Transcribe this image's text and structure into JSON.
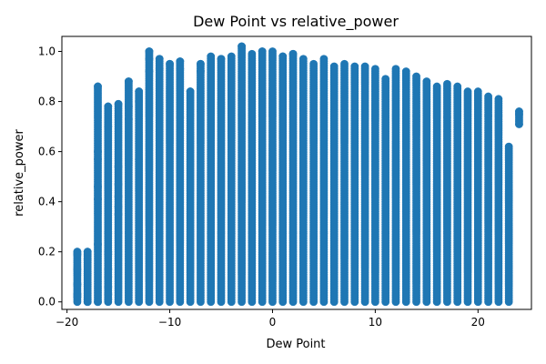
{
  "chart_data": {
    "type": "scatter",
    "title": "Dew Point vs relative_power",
    "xlabel": "Dew Point",
    "ylabel": "relative_power",
    "xlim": [
      -20.5,
      25.2
    ],
    "ylim": [
      -0.03,
      1.06
    ],
    "x_ticks": [
      -20,
      -10,
      0,
      10,
      20
    ],
    "y_ticks": [
      0.0,
      0.2,
      0.4,
      0.6,
      0.8,
      1.0
    ],
    "x_tick_labels": [
      "−20",
      "−10",
      "0",
      "10",
      "20"
    ],
    "y_tick_labels": [
      "0.0",
      "0.2",
      "0.4",
      "0.6",
      "0.8",
      "1.0"
    ],
    "grid": false,
    "legend": "none",
    "marker_color": "#1f77b4",
    "columns": [
      {
        "x": -19,
        "ymin": 0.0,
        "ymax": 0.2
      },
      {
        "x": -18,
        "ymin": 0.0,
        "ymax": 0.2
      },
      {
        "x": -17,
        "ymin": 0.0,
        "ymax": 0.86
      },
      {
        "x": -16,
        "ymin": 0.0,
        "ymax": 0.78
      },
      {
        "x": -15,
        "ymin": 0.0,
        "ymax": 0.79
      },
      {
        "x": -14,
        "ymin": 0.0,
        "ymax": 0.88
      },
      {
        "x": -13,
        "ymin": 0.0,
        "ymax": 0.84
      },
      {
        "x": -12,
        "ymin": 0.0,
        "ymax": 1.0
      },
      {
        "x": -11,
        "ymin": 0.0,
        "ymax": 0.97
      },
      {
        "x": -10,
        "ymin": 0.0,
        "ymax": 0.95
      },
      {
        "x": -9,
        "ymin": 0.0,
        "ymax": 0.96
      },
      {
        "x": -8,
        "ymin": 0.0,
        "ymax": 0.84
      },
      {
        "x": -7,
        "ymin": 0.0,
        "ymax": 0.95
      },
      {
        "x": -6,
        "ymin": 0.0,
        "ymax": 0.98
      },
      {
        "x": -5,
        "ymin": 0.0,
        "ymax": 0.97
      },
      {
        "x": -4,
        "ymin": 0.0,
        "ymax": 0.98
      },
      {
        "x": -3,
        "ymin": 0.0,
        "ymax": 1.02
      },
      {
        "x": -2,
        "ymin": 0.0,
        "ymax": 0.99
      },
      {
        "x": -1,
        "ymin": 0.0,
        "ymax": 1.0
      },
      {
        "x": 0,
        "ymin": 0.0,
        "ymax": 1.0
      },
      {
        "x": 1,
        "ymin": 0.0,
        "ymax": 0.98
      },
      {
        "x": 2,
        "ymin": 0.0,
        "ymax": 0.99
      },
      {
        "x": 3,
        "ymin": 0.0,
        "ymax": 0.97
      },
      {
        "x": 4,
        "ymin": 0.0,
        "ymax": 0.95
      },
      {
        "x": 5,
        "ymin": 0.0,
        "ymax": 0.97
      },
      {
        "x": 6,
        "ymin": 0.0,
        "ymax": 0.94
      },
      {
        "x": 7,
        "ymin": 0.0,
        "ymax": 0.95
      },
      {
        "x": 8,
        "ymin": 0.0,
        "ymax": 0.94
      },
      {
        "x": 9,
        "ymin": 0.0,
        "ymax": 0.94
      },
      {
        "x": 10,
        "ymin": 0.0,
        "ymax": 0.93
      },
      {
        "x": 11,
        "ymin": 0.0,
        "ymax": 0.89
      },
      {
        "x": 12,
        "ymin": 0.0,
        "ymax": 0.93
      },
      {
        "x": 13,
        "ymin": 0.0,
        "ymax": 0.92
      },
      {
        "x": 14,
        "ymin": 0.0,
        "ymax": 0.9
      },
      {
        "x": 15,
        "ymin": 0.0,
        "ymax": 0.88
      },
      {
        "x": 16,
        "ymin": 0.0,
        "ymax": 0.86
      },
      {
        "x": 17,
        "ymin": 0.0,
        "ymax": 0.87
      },
      {
        "x": 18,
        "ymin": 0.0,
        "ymax": 0.86
      },
      {
        "x": 19,
        "ymin": 0.0,
        "ymax": 0.84
      },
      {
        "x": 20,
        "ymin": 0.0,
        "ymax": 0.84
      },
      {
        "x": 21,
        "ymin": 0.0,
        "ymax": 0.82
      },
      {
        "x": 22,
        "ymin": 0.0,
        "ymax": 0.81
      },
      {
        "x": 23,
        "ymin": 0.0,
        "ymax": 0.62
      },
      {
        "x": 24,
        "ymin": 0.71,
        "ymax": 0.76
      }
    ],
    "sparse_points": [
      {
        "x": -19,
        "y": 0.2
      },
      {
        "x": -19,
        "y": 0.19
      },
      {
        "x": -19,
        "y": 0.13
      },
      {
        "x": -19,
        "y": 0.07
      },
      {
        "x": -19,
        "y": 0.03
      },
      {
        "x": -19,
        "y": 0.02
      },
      {
        "x": -18,
        "y": 0.2
      },
      {
        "x": -18,
        "y": 0.17
      },
      {
        "x": -18,
        "y": 0.01
      },
      {
        "x": -18,
        "y": 0.0
      },
      {
        "x": -17,
        "y": 0.86
      },
      {
        "x": -17,
        "y": 0.6
      },
      {
        "x": -17,
        "y": 0.57
      },
      {
        "x": -17,
        "y": 0.46
      },
      {
        "x": -17,
        "y": 0.41
      },
      {
        "x": -17,
        "y": 0.23
      },
      {
        "x": -17,
        "y": 0.0
      },
      {
        "x": -16,
        "y": 0.78
      },
      {
        "x": -16,
        "y": 0.7
      },
      {
        "x": -16,
        "y": 0.2
      },
      {
        "x": -16,
        "y": 0.19
      },
      {
        "x": -16,
        "y": 0.13
      },
      {
        "x": -16,
        "y": 0.1
      },
      {
        "x": -16,
        "y": 0.06
      },
      {
        "x": -16,
        "y": 0.03
      },
      {
        "x": -16,
        "y": 0.01
      },
      {
        "x": -15,
        "y": 0.79
      },
      {
        "x": -15,
        "y": 0.54
      },
      {
        "x": -15,
        "y": 0.47
      },
      {
        "x": -15,
        "y": 0.42
      },
      {
        "x": -15,
        "y": 0.38
      },
      {
        "x": -15,
        "y": 0.35
      },
      {
        "x": -14,
        "y": 0.88
      },
      {
        "x": -14,
        "y": 0.78
      },
      {
        "x": -14,
        "y": 0.73
      },
      {
        "x": -13,
        "y": 0.84
      },
      {
        "x": -13,
        "y": 0.8
      },
      {
        "x": -13,
        "y": 0.57
      },
      {
        "x": -12,
        "y": 1.0
      },
      {
        "x": -12,
        "y": 0.97
      },
      {
        "x": -12,
        "y": 0.92
      },
      {
        "x": -11,
        "y": 0.97
      },
      {
        "x": -11,
        "y": 0.93
      },
      {
        "x": -10,
        "y": 0.95
      },
      {
        "x": -9,
        "y": 0.96
      },
      {
        "x": -9,
        "y": 0.93
      },
      {
        "x": -8,
        "y": 0.84
      },
      {
        "x": -7,
        "y": 0.95
      },
      {
        "x": -7,
        "y": 0.92
      },
      {
        "x": -5,
        "y": 0.97
      },
      {
        "x": -3,
        "y": 1.02
      },
      {
        "x": -1,
        "y": 1.0
      },
      {
        "x": 1,
        "y": 0.98
      },
      {
        "x": 2,
        "y": 0.99
      },
      {
        "x": 24,
        "y": 0.76
      },
      {
        "x": 24,
        "y": 0.75
      },
      {
        "x": 24,
        "y": 0.71
      }
    ]
  }
}
